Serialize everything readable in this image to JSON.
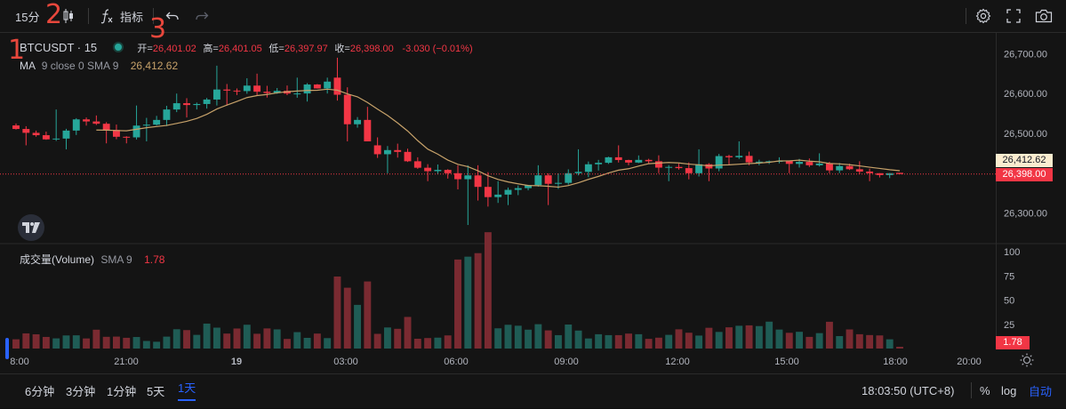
{
  "toolbar": {
    "interval": "15分",
    "indicators_label": "指标"
  },
  "annotations": [
    "1",
    "2",
    "3"
  ],
  "legend": {
    "symbol": "BTCUSDT · 15",
    "open_label": "开=",
    "open": "26,401.02",
    "high_label": "高=",
    "high": "26,401.05",
    "low_label": "低=",
    "low": "26,397.97",
    "close_label": "收=",
    "close": "26,398.00",
    "change": "-3.030 (−0.01%)",
    "ma_name": "MA",
    "ma_params": "9 close 0 SMA 9",
    "ma_value": "26,412.62"
  },
  "volume_legend": {
    "name": "成交量(Volume)",
    "params": "SMA 9",
    "value": "1.78"
  },
  "price_axis": {
    "ticks": [
      "26,700.00",
      "26,600.00",
      "26,500.00",
      "26,300.00"
    ],
    "ma_tag": "26,412.62",
    "last_tag": "26,398.00"
  },
  "volume_axis": {
    "ticks": [
      "100",
      "75",
      "50",
      "25"
    ],
    "last_tag": "1.78"
  },
  "time_axis": {
    "ticks": [
      "8:00",
      "21:00",
      "19",
      "03:00",
      "06:00",
      "09:00",
      "12:00",
      "15:00",
      "18:00",
      "20:00"
    ]
  },
  "bottombar": {
    "ranges": [
      "6分钟",
      "3分钟",
      "1分钟",
      "5天",
      "1天"
    ],
    "active_range": "1天",
    "clock": "18:03:50 (UTC+8)",
    "percent": "%",
    "log": "log",
    "auto": "自动"
  },
  "colors": {
    "up": "#26a69a",
    "down": "#f23645",
    "ma": "#c7a26a",
    "accent": "#2962ff",
    "annotation": "#e8473c"
  },
  "icons": [
    "candles-icon",
    "fx-icon",
    "undo-icon",
    "redo-icon",
    "gear-icon",
    "fullscreen-icon",
    "camera-icon",
    "tv-logo-icon",
    "sun-icon"
  ],
  "chart_data": {
    "type": "candlestick",
    "title": "",
    "ylim": [
      26250,
      26730
    ],
    "volume_ylim": [
      0,
      100
    ],
    "x": [
      "20:00",
      "21:00",
      "22:00",
      "23:00",
      "00:00",
      "01:00",
      "02:00",
      "03:00",
      "04:00",
      "05:00",
      "06:00",
      "07:00",
      "08:00",
      "09:00",
      "10:00",
      "11:00",
      "12:00",
      "13:00",
      "14:00",
      "15:00",
      "16:00",
      "17:00",
      "18:00"
    ],
    "ohlc_hourly": [
      [
        26520,
        26525,
        26470,
        26485
      ],
      [
        26485,
        26560,
        26460,
        26530
      ],
      [
        26530,
        26545,
        26475,
        26490
      ],
      [
        26490,
        26570,
        26480,
        26560
      ],
      [
        26560,
        26600,
        26540,
        26585
      ],
      [
        26585,
        26670,
        26570,
        26620
      ],
      [
        26620,
        26650,
        26590,
        26600
      ],
      [
        26600,
        26640,
        26580,
        26630
      ],
      [
        26640,
        26690,
        26480,
        26470
      ],
      [
        26470,
        26490,
        26400,
        26430
      ],
      [
        26430,
        26440,
        26380,
        26400
      ],
      [
        26400,
        26420,
        26270,
        26340
      ],
      [
        26340,
        26380,
        26320,
        26370
      ],
      [
        26370,
        26420,
        26320,
        26400
      ],
      [
        26400,
        26460,
        26390,
        26440
      ],
      [
        26440,
        26470,
        26420,
        26430
      ],
      [
        26430,
        26445,
        26380,
        26400
      ],
      [
        26400,
        26460,
        26380,
        26440
      ],
      [
        26440,
        26480,
        26420,
        26430
      ],
      [
        26430,
        26440,
        26400,
        26420
      ],
      [
        26420,
        26450,
        26400,
        26410
      ],
      [
        26410,
        26430,
        26380,
        26400
      ],
      [
        26401.02,
        26401.05,
        26397.97,
        26398.0
      ]
    ],
    "volume_hourly": [
      12,
      10,
      14,
      11,
      20,
      18,
      16,
      15,
      75,
      25,
      12,
      95,
      20,
      22,
      14,
      16,
      18,
      20,
      22,
      18,
      20,
      14,
      1.78
    ],
    "ma_last": 26412.62
  }
}
